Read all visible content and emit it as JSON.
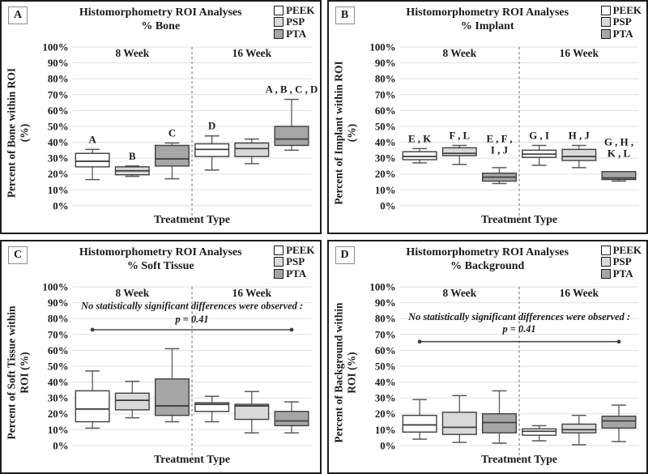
{
  "figure": {
    "series_colors": {
      "PEEK": "#ffffff",
      "PSP": "#d9d9d9",
      "PTA": "#a6a6a6"
    },
    "box_stroke": "#3f3f3f",
    "whisker_color": "#595959",
    "grid_color": "#e0e0e0",
    "divider_color": "#7f7f7f",
    "border_color": "#1c1c1c"
  },
  "chart_data": [
    {
      "type": "box",
      "panel_label": "A",
      "title": "Histomorphometry ROI Analyses",
      "subtitle": "% Bone",
      "ylabel": "Percent of Bone within ROI",
      "ylabel2": "(%)",
      "xlabel": "Treatment Type",
      "ylim": [
        0,
        100
      ],
      "yticks": [
        0,
        10,
        20,
        30,
        40,
        50,
        60,
        70,
        80,
        90,
        100
      ],
      "ytick_suffix": "%",
      "grid": true,
      "legend": [
        "PEEK",
        "PSP",
        "PTA"
      ],
      "legend_position": "top-right",
      "groups": [
        "8 Week",
        "16 Week"
      ],
      "annotation": null,
      "boxes": [
        {
          "group": "8 Week",
          "series": "PEEK",
          "note": "A",
          "low": 16.5,
          "q1": 24.5,
          "med": 28,
          "q3": 33,
          "high": 35.5
        },
        {
          "group": "8 Week",
          "series": "PSP",
          "note": "B",
          "low": 18.5,
          "q1": 19.5,
          "med": 22,
          "q3": 24.5,
          "high": 25
        },
        {
          "group": "8 Week",
          "series": "PTA",
          "note": "C",
          "low": 17,
          "q1": 25,
          "med": 29.5,
          "q3": 38,
          "high": 39.5
        },
        {
          "group": "16 Week",
          "series": "PEEK",
          "note": "D",
          "low": 22.5,
          "q1": 31,
          "med": 35.5,
          "q3": 39,
          "high": 44
        },
        {
          "group": "16 Week",
          "series": "PSP",
          "note": "",
          "low": 26.5,
          "q1": 31,
          "med": 36,
          "q3": 39.5,
          "high": 42
        },
        {
          "group": "16 Week",
          "series": "PTA",
          "note": "A , B , C , D",
          "low": 35,
          "q1": 38,
          "med": 42,
          "q3": 50,
          "high": 67
        }
      ]
    },
    {
      "type": "box",
      "panel_label": "B",
      "title": "Histomorphometry ROI Analyses",
      "subtitle": "% Implant",
      "ylabel": "Percent of Implant within ROI",
      "ylabel2": "(%)",
      "xlabel": "Treatment Type",
      "ylim": [
        0,
        100
      ],
      "yticks": [
        0,
        10,
        20,
        30,
        40,
        50,
        60,
        70,
        80,
        90,
        100
      ],
      "ytick_suffix": "%",
      "grid": true,
      "legend": [
        "PEEK",
        "PSP",
        "PTA"
      ],
      "legend_position": "top-right",
      "groups": [
        "8 Week",
        "16 Week"
      ],
      "annotation": null,
      "boxes": [
        {
          "group": "8 Week",
          "series": "PEEK",
          "note": "E , K",
          "low": 27,
          "q1": 29,
          "med": 31,
          "q3": 34,
          "high": 36
        },
        {
          "group": "8 Week",
          "series": "PSP",
          "note": "F , L",
          "low": 26,
          "q1": 31.5,
          "med": 33,
          "q3": 36.5,
          "high": 38
        },
        {
          "group": "8 Week",
          "series": "PTA",
          "note": "E , F ,",
          "note2": "I , J",
          "note_y": 40,
          "low": 14,
          "q1": 15.5,
          "med": 18,
          "q3": 20.5,
          "high": 24
        },
        {
          "group": "16 Week",
          "series": "PEEK",
          "note": "G , I",
          "low": 25.5,
          "q1": 30.5,
          "med": 32.5,
          "q3": 35,
          "high": 38
        },
        {
          "group": "16 Week",
          "series": "PSP",
          "note": "H , J",
          "low": 24,
          "q1": 28.5,
          "med": 31,
          "q3": 35.5,
          "high": 38
        },
        {
          "group": "16 Week",
          "series": "PTA",
          "note": "G , H ,",
          "note2": "K , L",
          "note_y": 38,
          "low": 15.5,
          "q1": 16.5,
          "med": 17.5,
          "q3": 21.5,
          "high": 21.5
        }
      ]
    },
    {
      "type": "box",
      "panel_label": "C",
      "title": "Histomorphometry ROI Analyses",
      "subtitle": "% Soft Tissue",
      "ylabel": "Percent of Soft Tissue within",
      "ylabel2": "ROI (%)",
      "xlabel": "Treatment Type",
      "ylim": [
        0,
        100
      ],
      "yticks": [
        0,
        10,
        20,
        30,
        40,
        50,
        60,
        70,
        80,
        90,
        100
      ],
      "ytick_suffix": "%",
      "grid": true,
      "legend": [
        "PEEK",
        "PSP",
        "PTA"
      ],
      "legend_position": "top-right",
      "groups": [
        "8 Week",
        "16 Week"
      ],
      "annotation": {
        "line1": "No statistically significant differences were observed :",
        "line2": "p = 0.41",
        "text_y": 86,
        "p_y": 77.5,
        "line_y": 73
      },
      "boxes": [
        {
          "group": "8 Week",
          "series": "PEEK",
          "note": "",
          "low": 11,
          "q1": 15,
          "med": 23,
          "q3": 34.5,
          "high": 47
        },
        {
          "group": "8 Week",
          "series": "PSP",
          "note": "",
          "low": 17.5,
          "q1": 22.5,
          "med": 28.5,
          "q3": 33,
          "high": 40.5
        },
        {
          "group": "8 Week",
          "series": "PTA",
          "note": "",
          "low": 15,
          "q1": 19,
          "med": 25,
          "q3": 42,
          "high": 61
        },
        {
          "group": "16 Week",
          "series": "PEEK",
          "note": "",
          "low": 15,
          "q1": 21.5,
          "med": 26,
          "q3": 27,
          "high": 31
        },
        {
          "group": "16 Week",
          "series": "PSP",
          "note": "",
          "low": 8,
          "q1": 16.5,
          "med": 25,
          "q3": 26,
          "high": 34
        },
        {
          "group": "16 Week",
          "series": "PTA",
          "note": "",
          "low": 8,
          "q1": 12.5,
          "med": 15.5,
          "q3": 21.5,
          "high": 27.5
        }
      ]
    },
    {
      "type": "box",
      "panel_label": "D",
      "title": "Histomorphometry ROI Analyses",
      "subtitle": "% Background",
      "ylabel": "Percent of Background within",
      "ylabel2": "ROI (%)",
      "xlabel": "Treatment Type",
      "ylim": [
        0,
        100
      ],
      "yticks": [
        0,
        10,
        20,
        30,
        40,
        50,
        60,
        70,
        80,
        90,
        100
      ],
      "ytick_suffix": "%",
      "grid": true,
      "legend": [
        "PEEK",
        "PSP",
        "PTA"
      ],
      "legend_position": "top-right",
      "groups": [
        "8 Week",
        "16 Week"
      ],
      "annotation": {
        "line1": "No statistically significant differences were observed :",
        "line2": "p = 0.41",
        "text_y": 79,
        "p_y": 71.5,
        "line_y": 65.5
      },
      "boxes": [
        {
          "group": "8 Week",
          "series": "PEEK",
          "note": "",
          "low": 4,
          "q1": 8.5,
          "med": 13,
          "q3": 19,
          "high": 29
        },
        {
          "group": "8 Week",
          "series": "PSP",
          "note": "",
          "low": 2,
          "q1": 7,
          "med": 11.5,
          "q3": 21,
          "high": 31.5
        },
        {
          "group": "8 Week",
          "series": "PTA",
          "note": "",
          "low": 1.5,
          "q1": 8,
          "med": 14.5,
          "q3": 20,
          "high": 34.5
        },
        {
          "group": "16 Week",
          "series": "PEEK",
          "note": "",
          "low": 3,
          "q1": 6.5,
          "med": 9,
          "q3": 10.5,
          "high": 12.5
        },
        {
          "group": "16 Week",
          "series": "PSP",
          "note": "",
          "low": 0.5,
          "q1": 8,
          "med": 10,
          "q3": 13.5,
          "high": 19
        },
        {
          "group": "16 Week",
          "series": "PTA",
          "note": "",
          "low": 2.5,
          "q1": 11,
          "med": 15.5,
          "q3": 18.5,
          "high": 25.5
        }
      ]
    }
  ]
}
